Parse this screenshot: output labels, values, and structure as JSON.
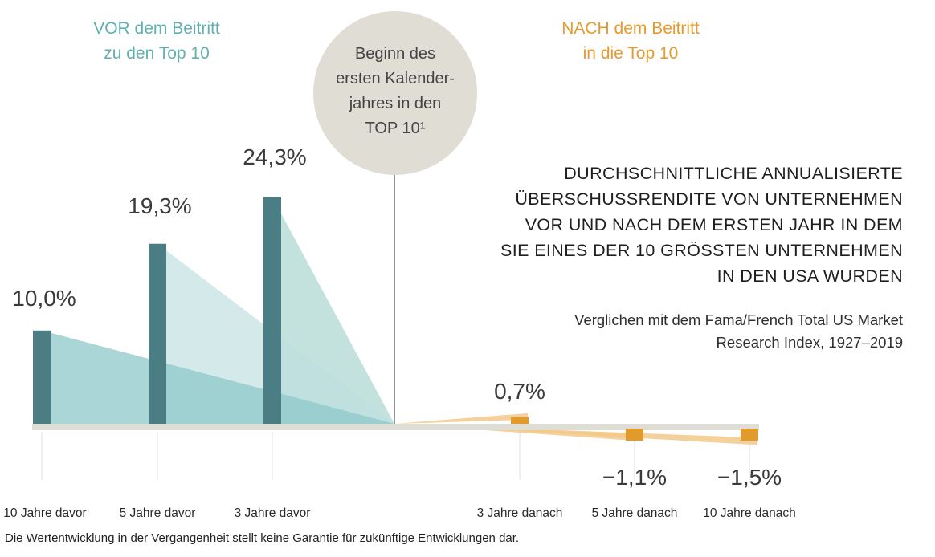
{
  "header_before": [
    "VOR dem Beitritt",
    "zu den Top 10"
  ],
  "header_after": [
    "NACH dem Beitritt",
    "in die Top 10"
  ],
  "circle_text": [
    "Beginn des",
    "ersten Kalender-",
    "jahres in den",
    "TOP 10¹"
  ],
  "title_lines": [
    "DURCHSCHNITTLICHE ANNUALISIERTE",
    "ÜBERSCHUSSRENDITE VON UNTERNEHMEN",
    "VOR UND NACH DEM ERSTEN JAHR IN DEM",
    "SIE EINES DER 10 GRÖSSTEN UNTERNEHMEN",
    "IN DEN USA WURDEN"
  ],
  "subtitle_lines": [
    "Verglichen mit dem Fama/French Total US Market",
    "Research Index, 1927–2019"
  ],
  "footnote": "Die Wertentwicklung in der Vergangenheit stellt keine Garantie für zukünftige Entwicklungen dar.",
  "colors": {
    "before_bar": "#4a7d84",
    "before_fill_1": "#8ec8c9",
    "before_fill_2": "#bddede",
    "before_fill_3": "#a9d5d0",
    "after_bar": "#e39a2d",
    "after_fill": "#f2c98a",
    "baseline": "#deddd6",
    "circle": "#e0ddd5",
    "header_before": "#5fb0b2",
    "header_after": "#e79a2e"
  },
  "chart_data": {
    "type": "bar",
    "categories": [
      "10 Jahre davor",
      "5 Jahre davor",
      "3 Jahre davor",
      "3 Jahre danach",
      "5 Jahre danach",
      "10 Jahre danach"
    ],
    "values": [
      10.0,
      19.3,
      24.3,
      0.7,
      -1.1,
      -1.5
    ],
    "data_labels": [
      "10,0%",
      "19,3%",
      "24,3%",
      "0,7%",
      "−1,1%",
      "−1,5%"
    ],
    "ylim": [
      -2,
      26
    ],
    "grid": false,
    "legend": "none"
  }
}
